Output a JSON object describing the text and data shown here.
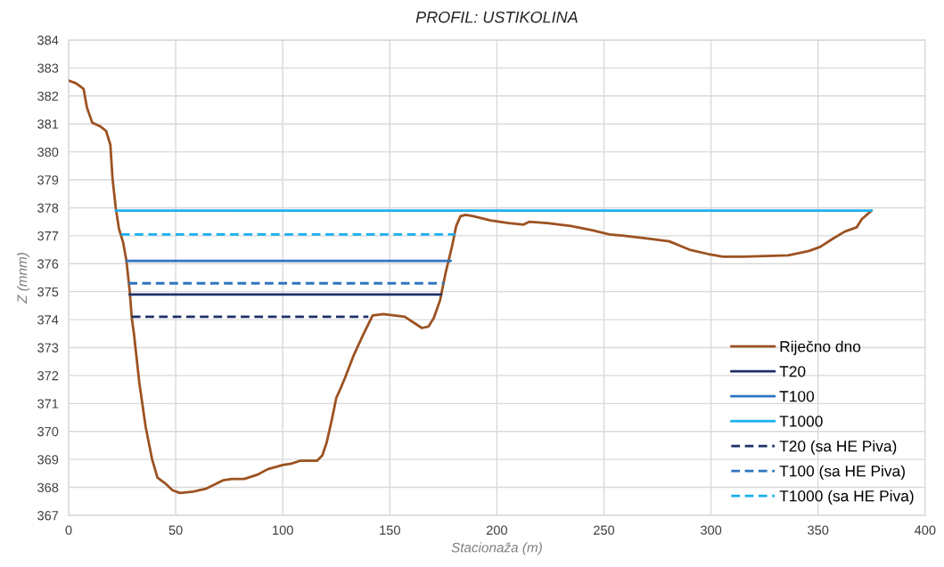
{
  "chart_data": {
    "type": "line",
    "title": "PROFIL: USTIKOLINA",
    "xlabel": "Stacionaža (m)",
    "ylabel": "Z (mnm)",
    "xlim": [
      0,
      400
    ],
    "xticks": [
      0,
      50,
      100,
      150,
      200,
      250,
      300,
      350,
      400
    ],
    "ylim": [
      367,
      384
    ],
    "yticks": [
      367,
      368,
      369,
      370,
      371,
      372,
      373,
      374,
      375,
      376,
      377,
      378,
      379,
      380,
      381,
      382,
      383,
      384
    ],
    "grid": true,
    "legend": "bottom right",
    "series": [
      {
        "name": "Riječno dno",
        "color": "#9c5221",
        "line_style": "solid",
        "x": [
          0,
          3.5,
          7,
          8.5,
          11,
          15,
          17.5,
          19.5,
          20.5,
          22,
          23.5,
          25.5,
          27,
          28.5,
          29.5,
          30.5,
          33,
          36,
          39,
          41.5,
          45,
          48.5,
          52,
          58,
          64,
          68,
          72,
          76,
          82,
          88,
          93,
          100,
          104,
          108,
          116,
          118.5,
          120.5,
          123,
          125,
          126.5,
          129,
          133,
          137.5,
          142,
          147,
          157,
          161,
          165,
          168,
          170.5,
          173.5,
          176,
          179,
          181,
          183,
          185.5,
          189,
          197,
          205.5,
          212.5,
          215,
          223.5,
          234.5,
          244.5,
          252.5,
          259.5,
          270,
          280.5,
          290,
          298.5,
          305.5,
          315,
          336,
          345.5,
          351,
          357,
          362.5,
          368,
          370.5,
          375
        ],
        "values": [
          382.55,
          382.45,
          382.25,
          381.6,
          381.05,
          380.9,
          380.75,
          380.25,
          379.05,
          378.0,
          377.25,
          376.75,
          376.1,
          375.05,
          374.05,
          373.5,
          371.75,
          370.15,
          369.0,
          368.35,
          368.15,
          367.9,
          367.8,
          367.85,
          367.95,
          368.1,
          368.25,
          368.3,
          368.3,
          368.45,
          368.65,
          368.8,
          368.85,
          368.95,
          368.95,
          369.15,
          369.6,
          370.45,
          371.2,
          371.45,
          371.9,
          372.7,
          373.45,
          374.15,
          374.2,
          374.1,
          373.9,
          373.7,
          373.75,
          374.05,
          374.7,
          375.65,
          376.6,
          377.35,
          377.7,
          377.75,
          377.7,
          377.55,
          377.45,
          377.4,
          377.5,
          377.45,
          377.35,
          377.2,
          377.05,
          377.0,
          376.9,
          376.8,
          376.5,
          376.35,
          376.25,
          376.25,
          376.3,
          376.45,
          376.6,
          376.9,
          377.15,
          377.3,
          377.6,
          377.9
        ]
      },
      {
        "name": "T20",
        "color": "#1f3168",
        "line_style": "solid",
        "x": [
          28.5,
          174
        ],
        "values": [
          374.9,
          374.9
        ]
      },
      {
        "name": "T100",
        "color": "#2e75c0",
        "line_style": "solid",
        "x": [
          27,
          178.5
        ],
        "values": [
          376.1,
          376.1
        ]
      },
      {
        "name": "T1000",
        "color": "#1ab0ee",
        "line_style": "solid",
        "x": [
          22,
          375
        ],
        "values": [
          377.9,
          377.9
        ]
      },
      {
        "name": "T20 (sa HE Piva)",
        "color": "#1f3168",
        "line_style": "dashed",
        "x": [
          29.5,
          140
        ],
        "values": [
          374.1,
          374.1
        ]
      },
      {
        "name": "T100 (sa HE Piva)",
        "color": "#2e75c0",
        "line_style": "dashed",
        "x": [
          28,
          175.5
        ],
        "values": [
          375.3,
          375.3
        ]
      },
      {
        "name": "T1000 (sa HE Piva)",
        "color": "#1ab0ee",
        "line_style": "dashed",
        "x": [
          24.5,
          180.5
        ],
        "values": [
          377.05,
          377.05
        ]
      }
    ]
  }
}
